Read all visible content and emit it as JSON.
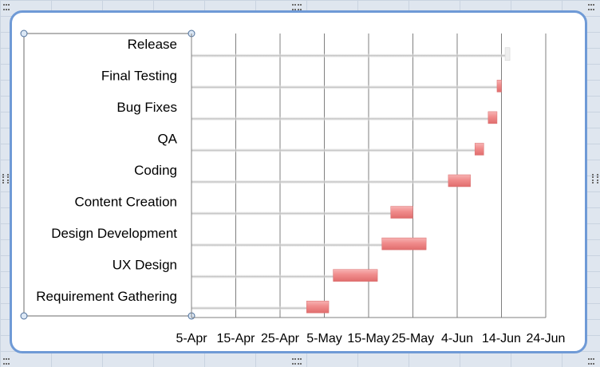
{
  "chart_data": {
    "type": "bar",
    "orientation": "horizontal-gantt",
    "categories": [
      "Requirement Gathering",
      "UX Design",
      "Design Development",
      "Content Creation",
      "Coding",
      "QA",
      "Bug Fixes",
      "Final Testing",
      "Release"
    ],
    "series": [
      {
        "role": "start",
        "values": [
          "2012-05-01",
          "2012-05-07",
          "2012-05-18",
          "2012-05-20",
          "2012-06-02",
          "2012-06-08",
          "2012-06-11",
          "2012-06-13",
          "2012-06-15"
        ]
      },
      {
        "role": "duration_days",
        "values": [
          5,
          10,
          10,
          5,
          5,
          2,
          2,
          1,
          0
        ]
      }
    ],
    "x_axis": {
      "min": "2012-04-05",
      "max": "2012-06-24",
      "major_unit_days": 10,
      "tick_labels": [
        "5-Apr",
        "15-Apr",
        "25-Apr",
        "5-May",
        "15-May",
        "25-May",
        "4-Jun",
        "14-Jun",
        "24-Jun"
      ]
    },
    "grid": {
      "vertical": true,
      "horizontal": false
    },
    "colors": {
      "duration_bar": "#f08b8b",
      "start_bar_shadow": "#c8c8c8",
      "gridline": "#7f7f7f",
      "frame_border": "#6f9ad6"
    },
    "title": "",
    "xlabel": "",
    "ylabel": ""
  }
}
